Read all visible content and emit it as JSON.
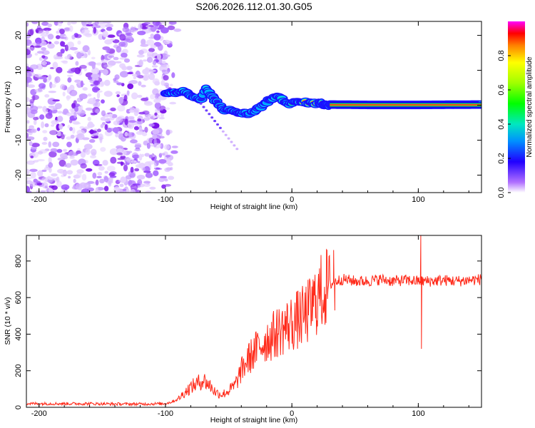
{
  "title": "S206.2026.112.01.30.G05",
  "chart_data": [
    {
      "type": "heatmap",
      "xlabel": "Height of straight line (km)",
      "ylabel": "Frequency (Hz)",
      "xlim": [
        -210,
        150
      ],
      "ylim": [
        -25,
        24
      ],
      "xticks": [
        -200,
        -100,
        0,
        100
      ],
      "yticks": [
        -20,
        -10,
        0,
        10,
        20
      ],
      "xtick_labels": [
        "-200",
        "-100",
        "0",
        "100"
      ],
      "ytick_labels": [
        "-20",
        "-10",
        "0",
        "10",
        "20"
      ],
      "noise_region_x": [
        -210,
        -90
      ],
      "ridge": [
        {
          "x": -100,
          "y": 3.5,
          "a": 0.35
        },
        {
          "x": -92,
          "y": 3.6,
          "a": 0.45
        },
        {
          "x": -86,
          "y": 3.9,
          "a": 0.55
        },
        {
          "x": -78,
          "y": 2.5,
          "a": 0.4
        },
        {
          "x": -73,
          "y": 1.2,
          "a": 0.35
        },
        {
          "x": -68,
          "y": 4.6,
          "a": 0.5
        },
        {
          "x": -63,
          "y": 2.5,
          "a": 0.35
        },
        {
          "x": -58,
          "y": 0.3,
          "a": 0.35
        },
        {
          "x": -53,
          "y": -1.3,
          "a": 0.38
        },
        {
          "x": -47,
          "y": -1.6,
          "a": 0.35
        },
        {
          "x": -40,
          "y": -2.3,
          "a": 0.4
        },
        {
          "x": -33,
          "y": -2.4,
          "a": 0.42
        },
        {
          "x": -27,
          "y": -1.0,
          "a": 0.45
        },
        {
          "x": -22,
          "y": 0.2,
          "a": 0.45
        },
        {
          "x": -17,
          "y": 1.6,
          "a": 0.5
        },
        {
          "x": -13,
          "y": 2.5,
          "a": 0.55
        },
        {
          "x": -8,
          "y": 1.7,
          "a": 0.55
        },
        {
          "x": -2,
          "y": 0.5,
          "a": 0.6
        },
        {
          "x": 5,
          "y": 0.9,
          "a": 0.75
        },
        {
          "x": 12,
          "y": 0.8,
          "a": 0.85
        },
        {
          "x": 20,
          "y": 0.5,
          "a": 0.9
        },
        {
          "x": 30,
          "y": 0.2,
          "a": 0.95
        },
        {
          "x": 60,
          "y": 0.1,
          "a": 1.0
        },
        {
          "x": 100,
          "y": 0.1,
          "a": 1.0
        },
        {
          "x": 150,
          "y": 0.2,
          "a": 1.0
        }
      ]
    },
    {
      "type": "colorbar",
      "label": "Normalized spectral amplitude",
      "range": [
        0,
        1
      ],
      "ticks": [
        0,
        0.2,
        0.4,
        0.6,
        0.8
      ],
      "tick_labels": [
        "0.0",
        "0.2",
        "0.4",
        "0.6",
        "0.8"
      ]
    },
    {
      "type": "line",
      "xlabel": "Height of straight line (km)",
      "ylabel": "SNR (10 * v/v)",
      "xlim": [
        -210,
        150
      ],
      "ylim": [
        0,
        940
      ],
      "xticks": [
        -200,
        -100,
        0,
        100
      ],
      "yticks": [
        0,
        200,
        400,
        600,
        800
      ],
      "xtick_labels": [
        "-200",
        "-100",
        "0",
        "100"
      ],
      "ytick_labels": [
        "0",
        "200",
        "400",
        "600",
        "800"
      ],
      "color": "#ff2a1a",
      "series": [
        {
          "name": "SNR",
          "x": [
            -210,
            -200,
            -180,
            -160,
            -140,
            -120,
            -100,
            -95,
            -90,
            -85,
            -80,
            -75,
            -70,
            -65,
            -60,
            -55,
            -50,
            -45,
            -40,
            -35,
            -30,
            -25,
            -20,
            -15,
            -10,
            -5,
            0,
            5,
            10,
            15,
            20,
            25,
            30,
            35,
            40,
            50,
            60,
            70,
            80,
            90,
            100,
            110,
            120,
            130,
            140,
            150
          ],
          "y": [
            20,
            20,
            20,
            20,
            18,
            18,
            20,
            30,
            45,
            80,
            110,
            130,
            150,
            120,
            80,
            70,
            90,
            120,
            200,
            260,
            300,
            340,
            370,
            390,
            420,
            440,
            460,
            480,
            500,
            540,
            600,
            640,
            670,
            690,
            700,
            690,
            690,
            700,
            690,
            695,
            690,
            690,
            695,
            690,
            695,
            700
          ]
        }
      ],
      "spikes": [
        {
          "x": 33,
          "y": 860
        },
        {
          "x": 34,
          "y": 530
        },
        {
          "x": 102,
          "y": 940
        },
        {
          "x": 102.5,
          "y": 320
        }
      ]
    }
  ]
}
